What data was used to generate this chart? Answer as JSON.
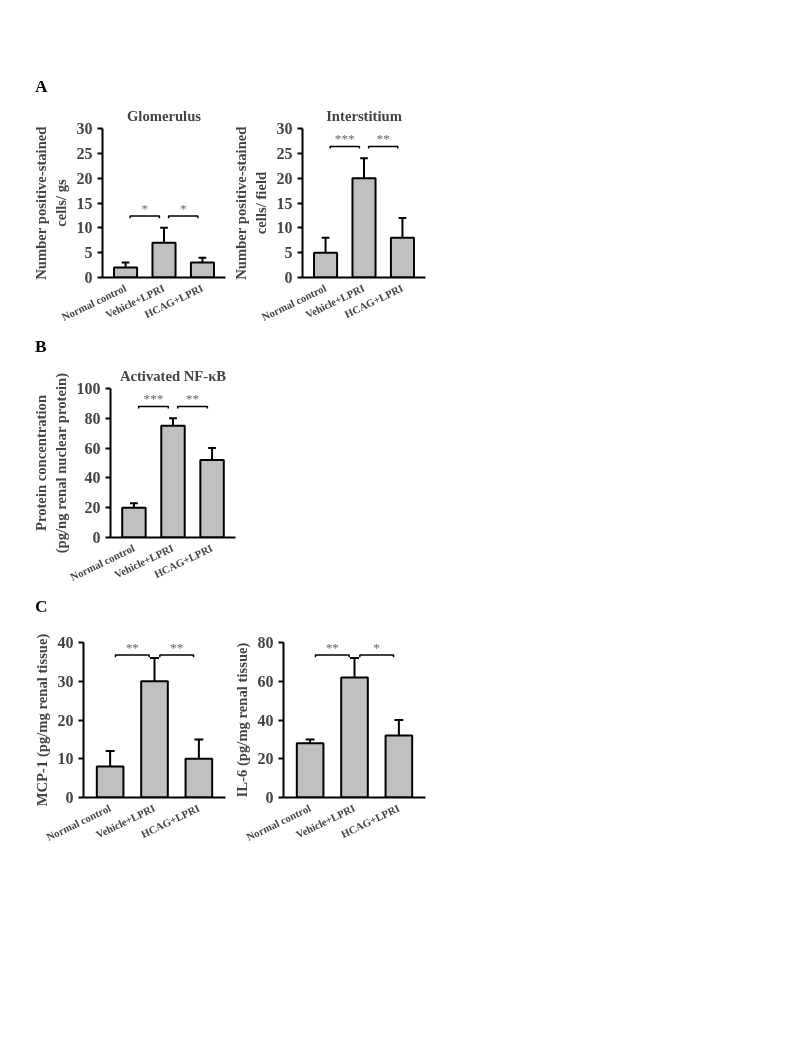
{
  "chart_data": [
    {
      "type": "bar",
      "title": "Glomerulus",
      "ylabel": "Number positive-stained\ncells/ gs",
      "categories": [
        "Normal control",
        "Vehicle+LPRI",
        "HCAG+LPRI"
      ],
      "values": [
        2,
        7,
        3
      ],
      "errors": [
        [
          2,
          3
        ],
        [
          7,
          10
        ],
        [
          3,
          4
        ]
      ],
      "color": "#c0c0c0",
      "ylim": [
        0,
        30
      ],
      "yticks": [
        0,
        5,
        10,
        15,
        20,
        25,
        30
      ],
      "annotations": [
        "A",
        "*",
        "*"
      ]
    },
    {
      "type": "bar",
      "title": "Interstitium",
      "ylabel": "Number positive-stained\ncells/ field",
      "categories": [
        "Normal control",
        "Vehicle+LPRI",
        "HCAG+LPRI"
      ],
      "values": [
        5,
        20,
        8
      ],
      "errors": [
        [
          5,
          8
        ],
        [
          20,
          24
        ],
        [
          8,
          12
        ]
      ],
      "color": "#c0c0c0",
      "ylim": [
        0,
        30
      ],
      "yticks": [
        0,
        5,
        10,
        15,
        20,
        25,
        30
      ],
      "annotations": [
        "***",
        "**"
      ]
    },
    {
      "type": "bar",
      "title": "Activated NF-κB",
      "ylabel": "Protein concentration\n(pg/ng renal nuclear protein)",
      "categories": [
        "Normal control",
        "Vehicle+LPRI",
        "HCAG+LPRI"
      ],
      "values": [
        20,
        75,
        52
      ],
      "errors": [
        [
          20,
          23
        ],
        [
          75,
          80
        ],
        [
          52,
          60
        ]
      ],
      "color": "#c0c0c0",
      "ylim": [
        0,
        100
      ],
      "yticks": [
        0,
        20,
        40,
        60,
        80,
        100
      ],
      "annotations": [
        "B",
        "***",
        "**"
      ]
    },
    {
      "type": "bar",
      "ylabel": "MCP-1 (pg/mg renal tissue)",
      "categories": [
        "Normal control",
        "Vehicle+LPRI",
        "HCAG+LPRI"
      ],
      "values": [
        8,
        30,
        10
      ],
      "errors": [
        [
          8,
          12
        ],
        [
          30,
          36
        ],
        [
          10,
          15
        ]
      ],
      "color": "#c0c0c0",
      "ylim": [
        0,
        40
      ],
      "yticks": [
        0,
        10,
        20,
        30,
        40
      ],
      "annotations": [
        "C",
        "**",
        "**"
      ]
    },
    {
      "type": "bar",
      "ylabel": "IL-6 (pg/mg renal tissue)",
      "categories": [
        "Normal control",
        "Vehicle+LPRI",
        "HCAG+LPRI"
      ],
      "values": [
        28,
        62,
        32
      ],
      "errors": [
        [
          28,
          30
        ],
        [
          62,
          72
        ],
        [
          32,
          40
        ]
      ],
      "color": "#c0c0c0",
      "ylim": [
        0,
        80
      ],
      "yticks": [
        0,
        20,
        40,
        60,
        80
      ],
      "annotations": [
        "**",
        "*"
      ]
    }
  ]
}
